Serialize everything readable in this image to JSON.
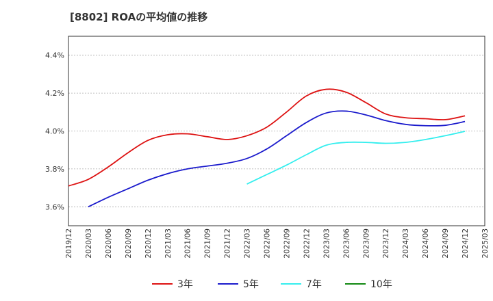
{
  "chart_data": {
    "type": "line",
    "title": "[8802]  ROAの平均値の推移",
    "xlabel": "",
    "ylabel": "",
    "ylim": [
      3.5,
      4.5
    ],
    "y_ticks": [
      3.6,
      3.8,
      4.0,
      4.2,
      4.4
    ],
    "y_tick_labels": [
      "3.6%",
      "3.8%",
      "4.0%",
      "4.2%",
      "4.4%"
    ],
    "x_tick_labels": [
      "2019/12",
      "2020/03",
      "2020/06",
      "2020/09",
      "2020/12",
      "2021/03",
      "2021/06",
      "2021/09",
      "2021/12",
      "2022/03",
      "2022/06",
      "2022/09",
      "2022/12",
      "2023/03",
      "2023/06",
      "2023/09",
      "2023/12",
      "2024/03",
      "2024/06",
      "2024/09",
      "2024/12",
      "2025/03"
    ],
    "grid": true,
    "legend_position": "bottom",
    "series": [
      {
        "name": "3年",
        "color": "#dd1111",
        "start_index": 0,
        "values": [
          3.71,
          3.745,
          3.81,
          3.885,
          3.95,
          3.98,
          3.985,
          3.97,
          3.955,
          3.975,
          4.02,
          4.1,
          4.185,
          4.22,
          4.205,
          4.15,
          4.09,
          4.07,
          4.065,
          4.06,
          4.08
        ]
      },
      {
        "name": "5年",
        "color": "#1a1acc",
        "start_index": 1,
        "values": [
          3.6,
          3.65,
          3.695,
          3.74,
          3.775,
          3.8,
          3.815,
          3.83,
          3.855,
          3.905,
          3.975,
          4.045,
          4.095,
          4.105,
          4.085,
          4.055,
          4.035,
          4.028,
          4.03,
          4.05
        ]
      },
      {
        "name": "7年",
        "color": "#33eeee",
        "start_index": 9,
        "values": [
          3.72,
          3.77,
          3.82,
          3.875,
          3.925,
          3.94,
          3.94,
          3.935,
          3.94,
          3.955,
          3.975,
          3.998
        ]
      },
      {
        "name": "10年",
        "color": "#118811",
        "start_index": 0,
        "values": []
      }
    ]
  }
}
